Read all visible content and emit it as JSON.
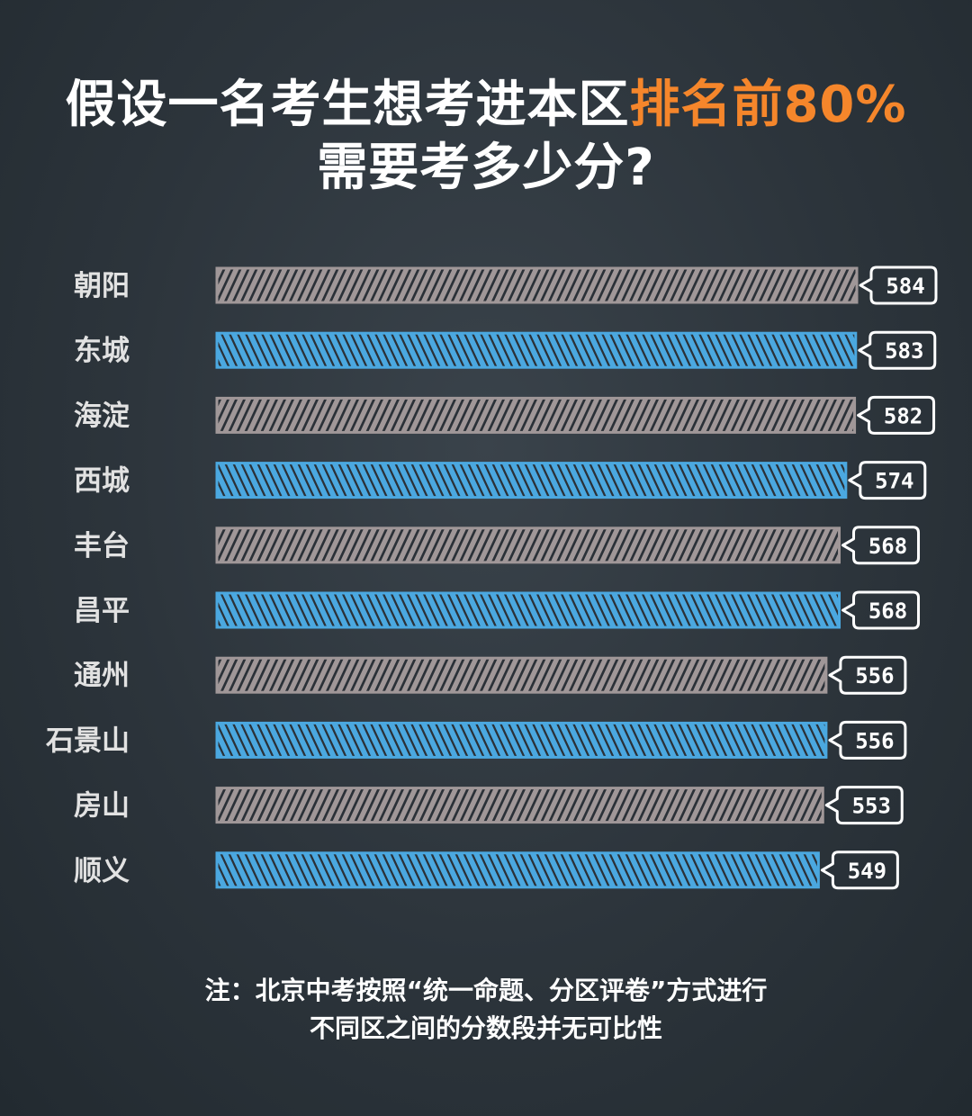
{
  "title": {
    "line1_prefix": "假设一名考生想考进本区",
    "line1_highlight": "排名前80%",
    "line2": "需要考多少分?"
  },
  "colors": {
    "highlight": "#f5862b",
    "bar_gray": "#a09798",
    "bar_blue": "#4ba8e0",
    "hatch_dark": "#2b3138"
  },
  "chart_data": {
    "type": "bar",
    "orientation": "horizontal",
    "categories": [
      "朝阳",
      "东城",
      "海淀",
      "西城",
      "丰台",
      "昌平",
      "通州",
      "石景山",
      "房山",
      "顺义"
    ],
    "values": [
      584,
      583,
      582,
      574,
      568,
      568,
      556,
      556,
      553,
      549
    ],
    "bar_colors": [
      "gray",
      "blue",
      "gray",
      "blue",
      "gray",
      "blue",
      "gray",
      "blue",
      "gray",
      "blue"
    ],
    "title": "假设一名考生想考进本区排名前80%需要考多少分?",
    "xlabel": "",
    "ylabel": "",
    "grid": false,
    "legend": "none"
  },
  "note": {
    "line1": "注：北京中考按照“统一命题、分区评卷”方式进行",
    "line2": "不同区之间的分数段并无可比性"
  }
}
